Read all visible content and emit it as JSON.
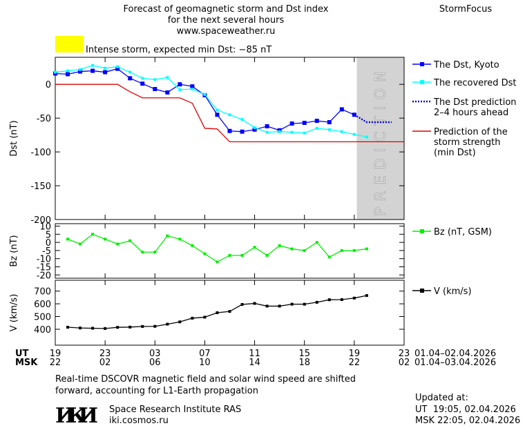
{
  "header": {
    "title_lines": [
      "Forecast of geomagnetic storm and Dst index",
      "for the next several hours",
      "www.spaceweather.ru"
    ],
    "brand": "StormFocus",
    "alert": {
      "text": "Intense storm, expected min Dst: −85 nT",
      "color": "#ffff00"
    }
  },
  "chart_data": [
    {
      "type": "line",
      "ylabel": "Dst (nT)",
      "xlim": [
        0,
        28
      ],
      "ylim": [
        -200,
        40
      ],
      "yticks": [
        0,
        -50,
        -100,
        -150,
        -200
      ],
      "shade_x": [
        24.2,
        28
      ],
      "shade_color": "#d3d3d3",
      "annotation": "PREDICTION",
      "series": [
        {
          "name": [
            "The Dst, Kyoto"
          ],
          "color": "#0000ff",
          "marker": "big",
          "x": [
            0,
            1,
            2,
            3,
            4,
            5,
            6,
            7,
            8,
            9,
            10,
            11,
            12,
            13,
            14,
            15,
            16,
            17,
            18,
            19,
            20,
            21,
            22,
            23,
            24
          ],
          "values": [
            16,
            15,
            19,
            20,
            18,
            23,
            9,
            1,
            -7,
            -12,
            0,
            -3,
            -16,
            -45,
            -69,
            -70,
            -67,
            -62,
            -68,
            -58,
            -57,
            -54,
            -56,
            -37,
            -45
          ]
        },
        {
          "name": [
            "The recovered Dst"
          ],
          "color": "#00ffff",
          "marker": "small",
          "x": [
            0,
            1,
            2,
            3,
            4,
            5,
            6,
            7,
            8,
            9,
            10,
            11,
            12,
            13,
            14,
            15,
            16,
            17,
            18,
            19,
            20,
            21,
            22,
            23,
            24,
            25
          ],
          "values": [
            18,
            20,
            22,
            28,
            24,
            26,
            18,
            9,
            7,
            10,
            -8,
            -7,
            -15,
            -38,
            -45,
            -52,
            -64,
            -71,
            -70,
            -71,
            -72,
            -65,
            -67,
            -70,
            -74,
            -78
          ]
        },
        {
          "name": [
            "The Dst prediction",
            "2–4 hours ahead"
          ],
          "color": "#0000cc",
          "dashed": true,
          "x": [
            24,
            25,
            27
          ],
          "values": [
            -45,
            -56,
            -56
          ]
        },
        {
          "name": [
            "Prediction of the",
            "storm strength",
            "(min Dst)"
          ],
          "color": "#dd0000",
          "x": [
            0,
            5,
            6,
            7,
            10,
            11,
            12,
            13,
            14,
            28
          ],
          "values": [
            0,
            0,
            -11,
            -20,
            -20,
            -28,
            -65,
            -66,
            -85,
            -85
          ]
        }
      ]
    },
    {
      "type": "line",
      "ylabel": "Bz (nT)",
      "xlim": [
        0,
        28
      ],
      "ylim": [
        -22,
        11.5
      ],
      "yticks": [
        10,
        5,
        0,
        -5,
        -10,
        -15,
        -20
      ],
      "series": [
        {
          "name": [
            "Bz (nT, GSM)"
          ],
          "color": "#00ee00",
          "marker": "small",
          "x": [
            1,
            2,
            3,
            4,
            5,
            6,
            7,
            8,
            9,
            10,
            11,
            12,
            13,
            14,
            15,
            16,
            17,
            18,
            19,
            20,
            21,
            22,
            23,
            24,
            25
          ],
          "values": [
            2,
            -1,
            5,
            2,
            -1,
            1,
            -6,
            -6,
            4,
            2,
            -2,
            -7,
            -12,
            -8,
            -8,
            -3,
            -8,
            -2,
            -4,
            -5,
            0,
            -9,
            -5,
            -5,
            -4
          ]
        }
      ]
    },
    {
      "type": "line",
      "ylabel": "V (km/s)",
      "xlim": [
        0,
        28
      ],
      "ylim": [
        275,
        785
      ],
      "yticks": [
        400,
        500,
        600,
        700
      ],
      "series": [
        {
          "name": [
            "V (km/s)"
          ],
          "color": "#000000",
          "marker": "small",
          "x": [
            1,
            2,
            3,
            4,
            5,
            6,
            7,
            8,
            9,
            10,
            11,
            12,
            13,
            14,
            15,
            16,
            17,
            18,
            19,
            20,
            21,
            22,
            23,
            24,
            25
          ],
          "values": [
            416,
            410,
            408,
            406,
            415,
            417,
            422,
            423,
            440,
            458,
            487,
            495,
            530,
            540,
            595,
            603,
            582,
            582,
            597,
            597,
            612,
            632,
            633,
            645,
            665
          ]
        }
      ],
      "xrow_ut": "UT",
      "xrow_msk": "MSK",
      "xticks": [
        {
          "value": 0,
          "label": "19"
        },
        {
          "value": 4,
          "label": "23"
        },
        {
          "value": 8,
          "label": "03"
        },
        {
          "value": 12,
          "label": "07"
        },
        {
          "value": 16,
          "label": "11"
        },
        {
          "value": 20,
          "label": "15"
        },
        {
          "value": 24,
          "label": "19"
        },
        {
          "value": 28,
          "label": "23"
        }
      ],
      "xticks_msk": [
        {
          "value": 0,
          "label": "22"
        },
        {
          "value": 4,
          "label": "02"
        },
        {
          "value": 8,
          "label": "06"
        },
        {
          "value": 12,
          "label": "10"
        },
        {
          "value": 16,
          "label": "14"
        },
        {
          "value": 20,
          "label": "18"
        },
        {
          "value": 24,
          "label": "22"
        },
        {
          "value": 28,
          "label": "02"
        }
      ],
      "date_ut": "01.04–02.04.2026",
      "date_msk": "01.04–03.04.2026"
    }
  ],
  "footer": {
    "note_lines": [
      "Real-time DSCOVR magnetic field and solar wind speed are shifted",
      "forward, accounting for L1-Earth propagation"
    ],
    "logo": "ИКИ",
    "institute": "Space Research Institute RAS",
    "site": "iki.cosmos.ru",
    "updated_label": "Updated at:",
    "updated_ut": "UT  19:05, 02.04.2026",
    "updated_msk": "MSK 22:05, 02.04.2026"
  }
}
